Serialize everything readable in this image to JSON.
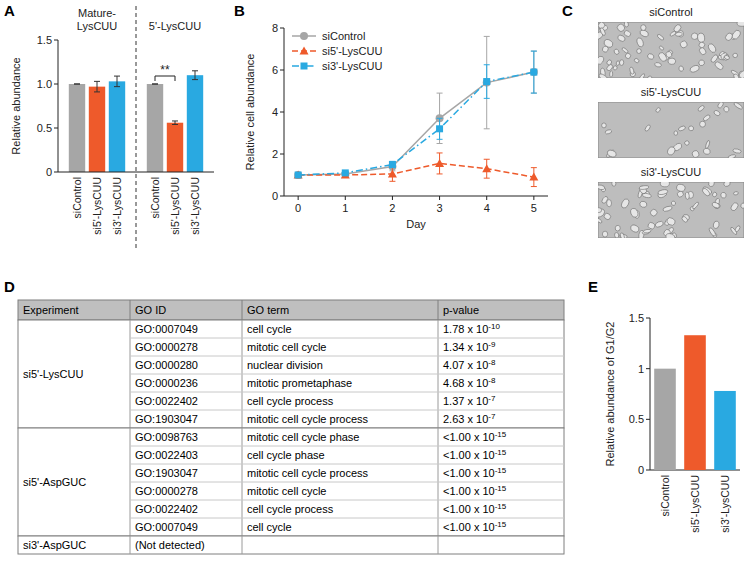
{
  "panel_labels": [
    "A",
    "B",
    "C",
    "D",
    "E"
  ],
  "chart_data": [
    {
      "type": "bar",
      "y_label": "Relative abundance",
      "categories": [
        "Mature-LysCUU",
        "5'-LysCUU"
      ],
      "series": [
        {
          "name": "siControl",
          "color": "#a6a6a6",
          "values": [
            1,
            1
          ],
          "errors": [
            0,
            0
          ]
        },
        {
          "name": "si5'-LysCUU",
          "color": "#ee5a2b",
          "values": [
            0.97,
            0.56
          ],
          "errors": [
            0.06,
            0.02
          ]
        },
        {
          "name": "si3'-LysCUU",
          "color": "#29a9e1",
          "values": [
            1.03,
            1.1
          ],
          "errors": [
            0.06,
            0.05
          ]
        }
      ],
      "ylim": [
        0,
        1.5
      ],
      "yticks": [
        0,
        0.5,
        {
          "value": 1,
          "label": "1.0"
        },
        1.5
      ],
      "annotations": [
        "**"
      ]
    },
    {
      "type": "line",
      "x_label": "Day",
      "y_label": "Relative cell abundance",
      "x": [
        0,
        1,
        2,
        3,
        4,
        5
      ],
      "xlim": [
        -0.3,
        5.3
      ],
      "xticks": [
        0,
        1,
        2,
        3,
        4,
        5
      ],
      "ylim": [
        0,
        8
      ],
      "yticks": [
        0,
        2,
        4,
        6,
        8
      ],
      "legend": "top-left",
      "series": [
        {
          "name": "siControl",
          "color": "#a6a6a6",
          "marker": "circle",
          "line_style": "solid",
          "values": [
            1,
            1.05,
            1.4,
            3.7,
            5.4,
            5.9
          ],
          "errors": [
            0,
            0.05,
            0.2,
            1.2,
            2.2,
            1.0
          ]
        },
        {
          "name": "si5'-LysCUU",
          "color": "#ee5a2b",
          "marker": "triangle",
          "line_style": "dashed",
          "values": [
            1,
            1.0,
            1.05,
            1.55,
            1.3,
            0.9
          ],
          "errors": [
            0,
            0.05,
            0.35,
            0.5,
            0.45,
            0.45
          ]
        },
        {
          "name": "si3'-LysCUU",
          "color": "#29a9e1",
          "marker": "square",
          "line_style": "dashdot",
          "values": [
            1,
            1.1,
            1.5,
            3.2,
            5.45,
            5.9
          ],
          "errors": [
            0,
            0.05,
            0.15,
            0.5,
            0.8,
            1.0
          ]
        }
      ]
    },
    {
      "type": "bar",
      "y_label": "Relative abundance of G1/G2",
      "categories": [
        "siControl",
        "si5'-LysCUU",
        "si3'-LysCUU"
      ],
      "values": [
        1,
        1.33,
        0.78
      ],
      "colors": [
        "#a6a6a6",
        "#ee5a2b",
        "#29a9e1"
      ],
      "ylim": [
        0,
        1.5
      ],
      "yticks": [
        0,
        0.5,
        1,
        1.5
      ]
    }
  ],
  "panel_c": {
    "images": [
      "siControl",
      "si5'-LysCUU",
      "si3'-LysCUU"
    ]
  },
  "table_d": {
    "columns": [
      "Experiment",
      "GO ID",
      "GO term",
      "p-value"
    ],
    "groups": [
      {
        "experiment": "si5'-LysCUU",
        "rows": [
          {
            "go_id": "GO:0007049",
            "term": "cell cycle",
            "p_value": {
              "base": "1.78 x 10",
              "exp": "-10"
            }
          },
          {
            "go_id": "GO:0000278",
            "term": "mitotic cell cycle",
            "p_value": {
              "base": "1.34 x 10",
              "exp": "-9"
            }
          },
          {
            "go_id": "GO:0000280",
            "term": "nuclear division",
            "p_value": {
              "base": "4.07 x 10",
              "exp": "-8"
            }
          },
          {
            "go_id": "GO:0000236",
            "term": "mitotic prometaphase",
            "p_value": {
              "base": "4.68 x 10",
              "exp": "-8"
            }
          },
          {
            "go_id": "GO:0022402",
            "term": "cell cycle process",
            "p_value": {
              "base": "1.37 x 10",
              "exp": "-7"
            }
          },
          {
            "go_id": "GO:1903047",
            "term": "mitotic cell cycle process",
            "p_value": {
              "base": "2.63 x 10",
              "exp": "-7"
            }
          }
        ]
      },
      {
        "experiment": "si5'-AspGUC",
        "rows": [
          {
            "go_id": "GO:0098763",
            "term": "mitotic cell cycle phase",
            "p_value": {
              "base": "<1.00 x 10",
              "exp": "-15"
            }
          },
          {
            "go_id": "GO:0022403",
            "term": "cell cycle phase",
            "p_value": {
              "base": "<1.00 x 10",
              "exp": "-15"
            }
          },
          {
            "go_id": "GO:1903047",
            "term": "mitotic cell cycle process",
            "p_value": {
              "base": "<1.00 x 10",
              "exp": "-15"
            }
          },
          {
            "go_id": "GO:0000278",
            "term": "mitotic cell cycle",
            "p_value": {
              "base": "<1.00 x 10",
              "exp": "-15"
            }
          },
          {
            "go_id": "GO:0022402",
            "term": "cell cycle process",
            "p_value": {
              "base": "<1.00 x 10",
              "exp": "-15"
            }
          },
          {
            "go_id": "GO:0007049",
            "term": "cell cycle",
            "p_value": {
              "base": "<1.00 x 10",
              "exp": "-15"
            }
          }
        ]
      },
      {
        "experiment": "si3'-AspGUC",
        "note": "(Not detected)",
        "rows": []
      }
    ]
  }
}
